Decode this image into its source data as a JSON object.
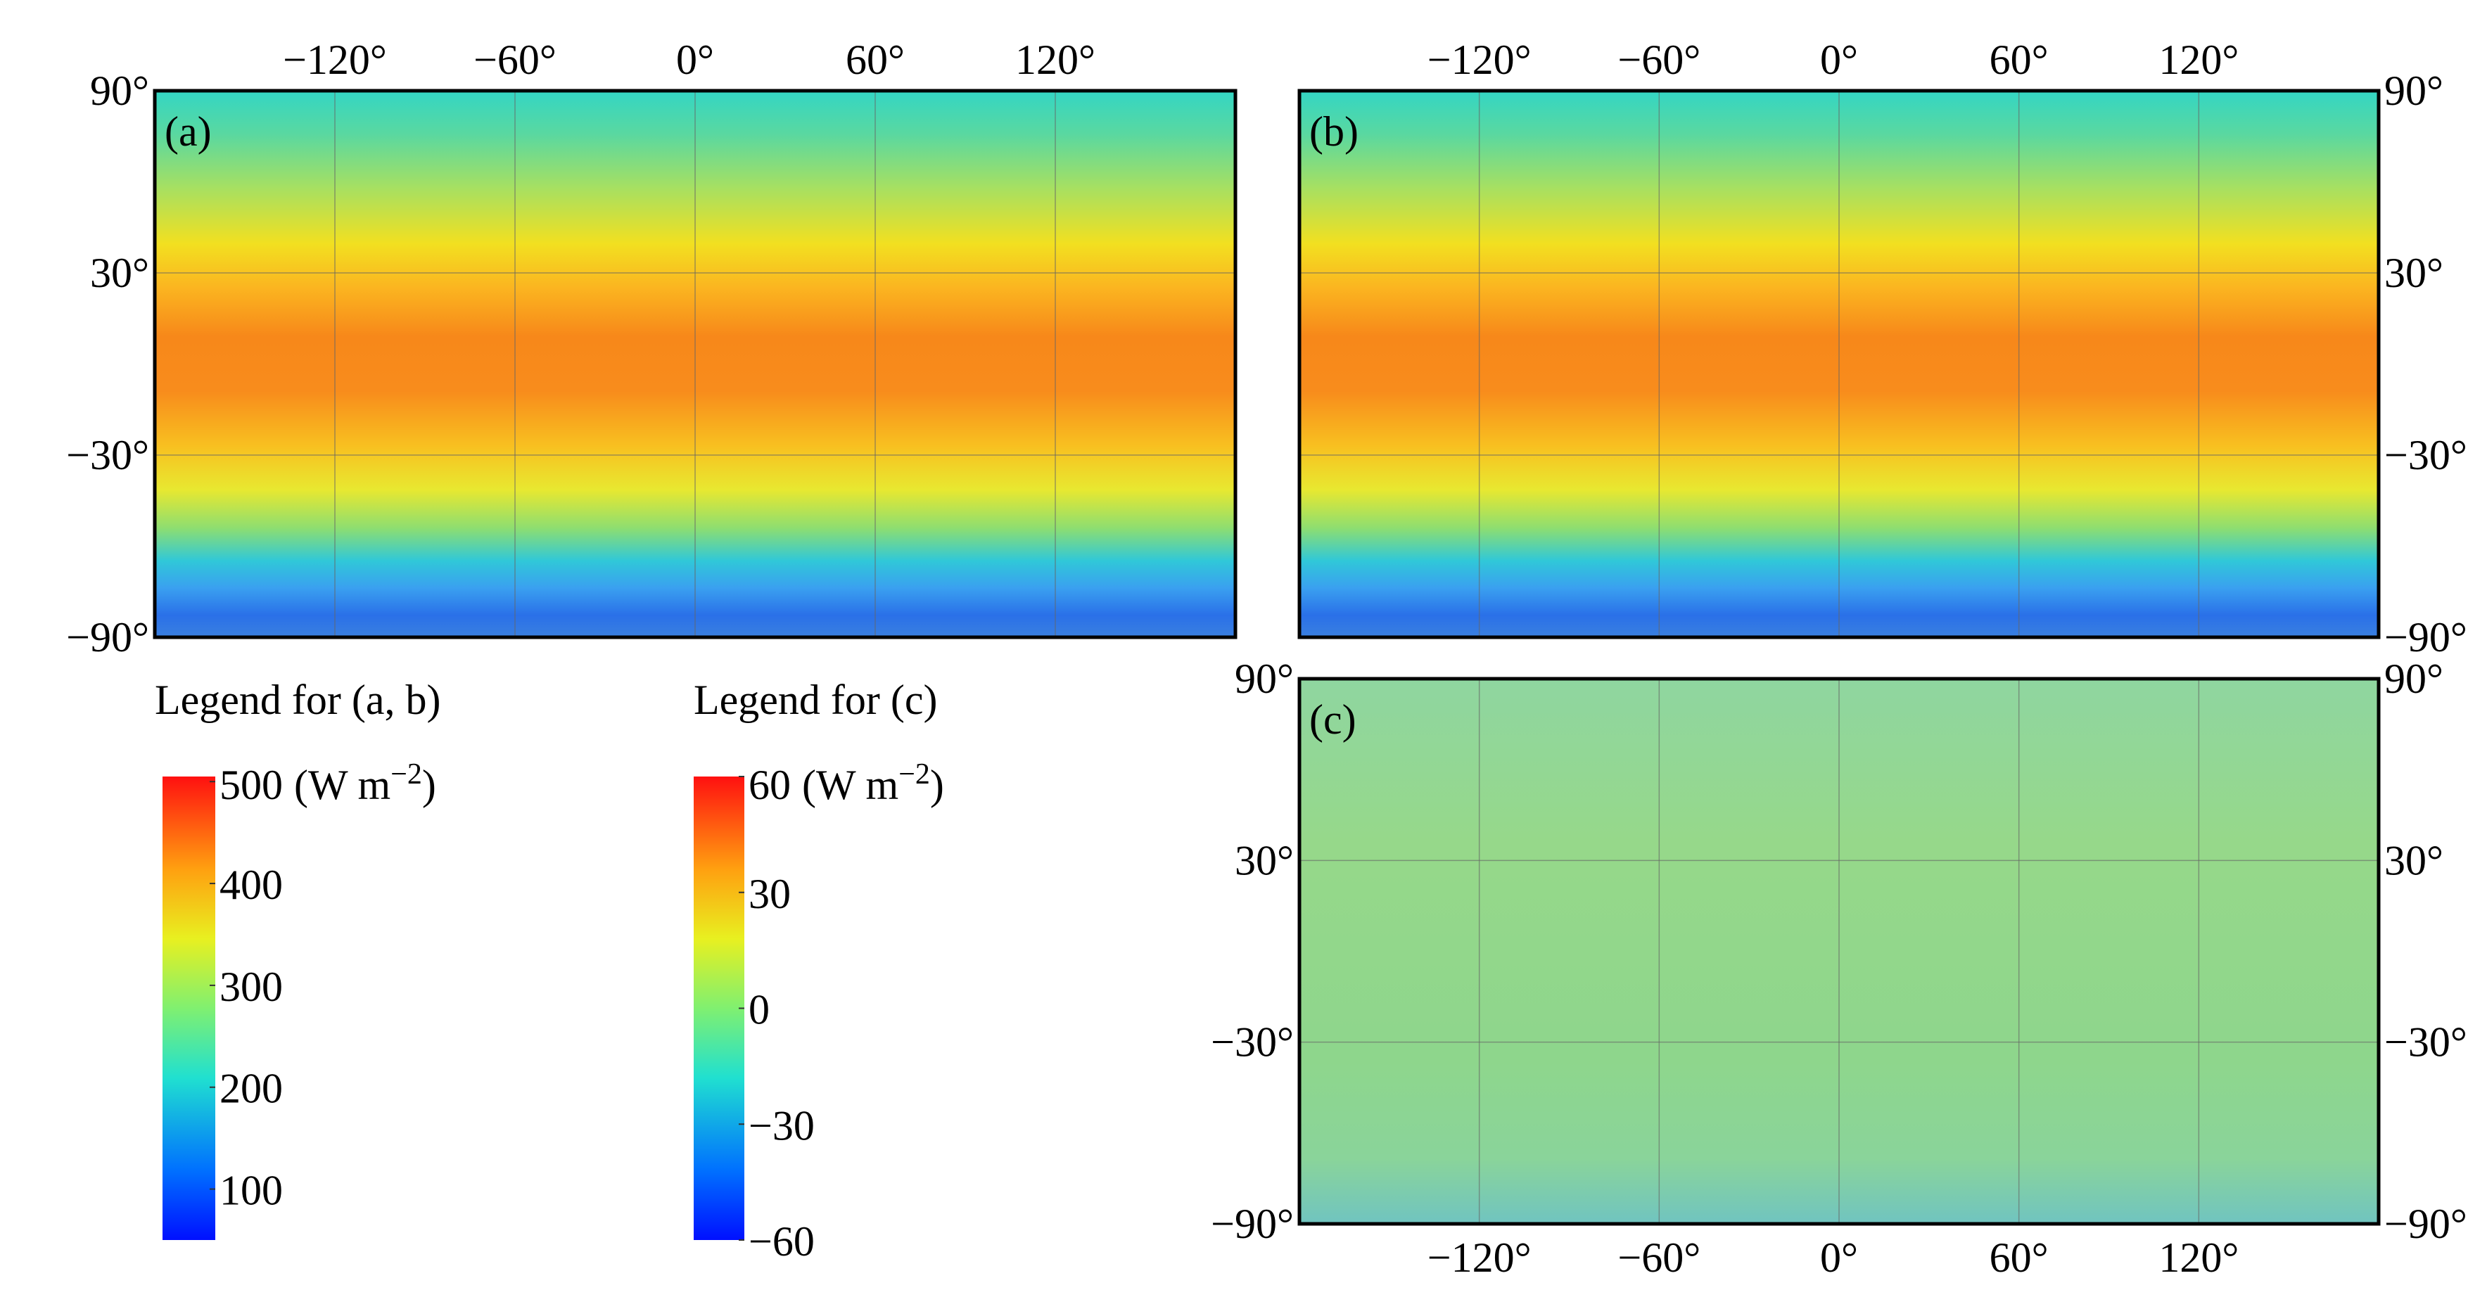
{
  "panels": [
    {
      "label": "(a)",
      "xlim": [
        -180,
        180
      ],
      "ylim": [
        -90,
        90
      ],
      "xticks": [
        {
          "value": -120,
          "label": "−120°"
        },
        {
          "value": -60,
          "label": "−60°"
        },
        {
          "value": 0,
          "label": "0°"
        },
        {
          "value": 60,
          "label": "60°"
        },
        {
          "value": 120,
          "label": "120°"
        }
      ],
      "yticks": [
        {
          "value": 90,
          "label": "90°"
        },
        {
          "value": 30,
          "label": "30°"
        },
        {
          "value": -30,
          "label": "−30°"
        },
        {
          "value": -90,
          "label": "−90°"
        }
      ]
    },
    {
      "label": "(b)",
      "xlim": [
        -180,
        180
      ],
      "ylim": [
        -90,
        90
      ],
      "xticks": [
        {
          "value": -120,
          "label": "−120°"
        },
        {
          "value": -60,
          "label": "−60°"
        },
        {
          "value": 0,
          "label": "0°"
        },
        {
          "value": 60,
          "label": "60°"
        },
        {
          "value": 120,
          "label": "120°"
        }
      ],
      "yticks": [
        {
          "value": 90,
          "label": "90°"
        },
        {
          "value": 30,
          "label": "30°"
        },
        {
          "value": -30,
          "label": "−30°"
        },
        {
          "value": -90,
          "label": "−90°"
        }
      ]
    },
    {
      "label": "(c)",
      "xlim": [
        -180,
        180
      ],
      "ylim": [
        -90,
        90
      ],
      "xticks": [
        {
          "value": -120,
          "label": "−120°"
        },
        {
          "value": -60,
          "label": "−60°"
        },
        {
          "value": 0,
          "label": "0°"
        },
        {
          "value": 60,
          "label": "60°"
        },
        {
          "value": 120,
          "label": "120°"
        }
      ],
      "yticks": [
        {
          "value": 90,
          "label": "90°"
        },
        {
          "value": 30,
          "label": "30°"
        },
        {
          "value": -30,
          "label": "−30°"
        },
        {
          "value": -90,
          "label": "−90°"
        }
      ]
    }
  ],
  "legends": [
    {
      "title": "Legend for (a, b)",
      "unit": [
        "(W m",
        "−2",
        ")"
      ],
      "range": [
        50,
        505
      ],
      "ticks": [
        500,
        400,
        300,
        200,
        100
      ]
    },
    {
      "title": "Legend for (c)",
      "unit": [
        "(W m",
        "−2",
        ")"
      ],
      "range": [
        -60,
        60
      ],
      "ticks": [
        60,
        30,
        0,
        {
          "value": -30,
          "label": "−30"
        },
        {
          "value": -60,
          "label": "−60"
        }
      ]
    }
  ]
}
